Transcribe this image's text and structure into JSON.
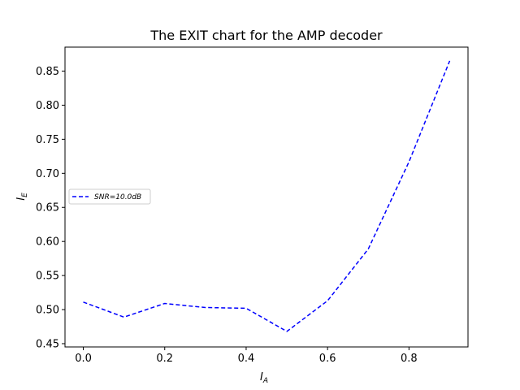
{
  "chart_data": {
    "type": "line",
    "title": "The EXIT chart for the AMP decoder",
    "xlabel": "I",
    "xlabel_sub": "A",
    "ylabel": "I",
    "ylabel_sub": "E",
    "xlim": [
      -0.045,
      0.945
    ],
    "ylim": [
      0.4452,
      0.8852
    ],
    "xticks": [
      0.0,
      0.2,
      0.4,
      0.6,
      0.8
    ],
    "xtick_labels": [
      "0.0",
      "0.2",
      "0.4",
      "0.6",
      "0.8"
    ],
    "yticks": [
      0.45,
      0.5,
      0.55,
      0.6,
      0.65,
      0.7,
      0.75,
      0.8,
      0.85
    ],
    "ytick_labels": [
      "0.45",
      "0.50",
      "0.55",
      "0.60",
      "0.65",
      "0.70",
      "0.75",
      "0.80",
      "0.85"
    ],
    "grid": false,
    "legend_position": "center-left",
    "series": [
      {
        "name": "SNR=10.0dB",
        "color": "#0000ff",
        "linestyle": "dashed",
        "x": [
          0.0,
          0.1,
          0.2,
          0.3,
          0.4,
          0.5,
          0.6,
          0.7,
          0.8,
          0.9
        ],
        "y": [
          0.511,
          0.489,
          0.509,
          0.503,
          0.502,
          0.468,
          0.513,
          0.589,
          0.717,
          0.865
        ]
      }
    ]
  }
}
